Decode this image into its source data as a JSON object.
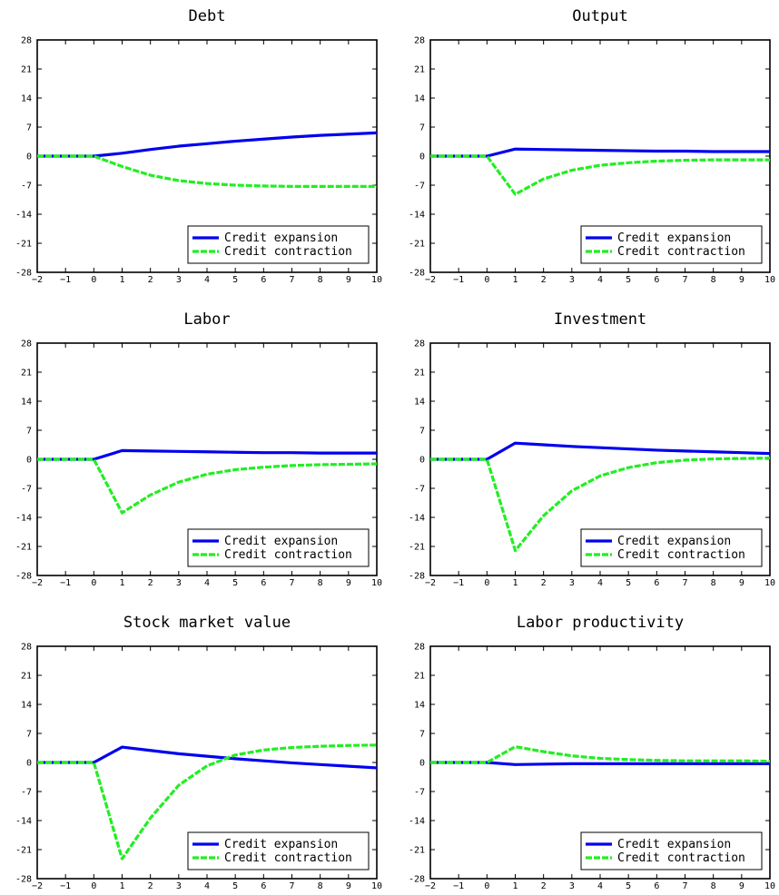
{
  "chart_data": [
    {
      "type": "line",
      "title": "Debt",
      "x": [
        -2,
        -1,
        0,
        1,
        2,
        3,
        4,
        5,
        6,
        7,
        8,
        9,
        10
      ],
      "xlim": [
        -2,
        10
      ],
      "ylim": [
        -28,
        28
      ],
      "xticks": [
        "−2",
        "−1",
        "0",
        "1",
        "2",
        "3",
        "4",
        "5",
        "6",
        "7",
        "8",
        "9",
        "10"
      ],
      "yticks": [
        "28",
        "21",
        "14",
        "7",
        "0",
        "-7",
        "-14",
        "-21",
        "-28"
      ],
      "legend_position": "bottom-right",
      "grid": false,
      "series": [
        {
          "name": "Credit expansion",
          "color": "#0000ee",
          "style": "solid",
          "values": [
            0,
            0,
            0,
            0.7,
            1.6,
            2.4,
            3.0,
            3.6,
            4.1,
            4.6,
            5.0,
            5.3,
            5.6
          ]
        },
        {
          "name": "Credit contraction",
          "color": "#22ee22",
          "style": "dashed",
          "values": [
            0,
            0,
            0,
            -2.5,
            -4.6,
            -5.9,
            -6.6,
            -7.0,
            -7.2,
            -7.3,
            -7.3,
            -7.3,
            -7.3
          ]
        }
      ]
    },
    {
      "type": "line",
      "title": "Output",
      "x": [
        -2,
        -1,
        0,
        1,
        2,
        3,
        4,
        5,
        6,
        7,
        8,
        9,
        10
      ],
      "xlim": [
        -2,
        10
      ],
      "ylim": [
        -28,
        28
      ],
      "xticks": [
        "−2",
        "−1",
        "0",
        "1",
        "2",
        "3",
        "4",
        "5",
        "6",
        "7",
        "8",
        "9",
        "10"
      ],
      "yticks": [
        "28",
        "21",
        "14",
        "7",
        "0",
        "-7",
        "-14",
        "-21",
        "-28"
      ],
      "legend_position": "bottom-right",
      "grid": false,
      "series": [
        {
          "name": "Credit expansion",
          "color": "#0000ee",
          "style": "solid",
          "values": [
            0,
            0,
            0,
            1.7,
            1.6,
            1.5,
            1.4,
            1.3,
            1.2,
            1.2,
            1.1,
            1.1,
            1.1
          ]
        },
        {
          "name": "Credit contraction",
          "color": "#22ee22",
          "style": "dashed",
          "values": [
            0,
            0,
            0,
            -9.2,
            -5.5,
            -3.4,
            -2.2,
            -1.6,
            -1.2,
            -1.0,
            -0.9,
            -0.9,
            -0.9
          ]
        }
      ]
    },
    {
      "type": "line",
      "title": "Labor",
      "x": [
        -2,
        -1,
        0,
        1,
        2,
        3,
        4,
        5,
        6,
        7,
        8,
        9,
        10
      ],
      "xlim": [
        -2,
        10
      ],
      "ylim": [
        -28,
        28
      ],
      "xticks": [
        "−2",
        "−1",
        "0",
        "1",
        "2",
        "3",
        "4",
        "5",
        "6",
        "7",
        "8",
        "9",
        "10"
      ],
      "yticks": [
        "28",
        "21",
        "14",
        "7",
        "0",
        "-7",
        "-14",
        "-21",
        "-28"
      ],
      "legend_position": "bottom-right",
      "grid": false,
      "series": [
        {
          "name": "Credit expansion",
          "color": "#0000ee",
          "style": "solid",
          "values": [
            0,
            0,
            0,
            2.1,
            2.0,
            1.9,
            1.8,
            1.7,
            1.6,
            1.6,
            1.5,
            1.5,
            1.5
          ]
        },
        {
          "name": "Credit contraction",
          "color": "#22ee22",
          "style": "dashed",
          "values": [
            0,
            0,
            0,
            -12.9,
            -8.6,
            -5.5,
            -3.6,
            -2.5,
            -1.9,
            -1.5,
            -1.3,
            -1.2,
            -1.1
          ]
        }
      ]
    },
    {
      "type": "line",
      "title": "Investment",
      "x": [
        -2,
        -1,
        0,
        1,
        2,
        3,
        4,
        5,
        6,
        7,
        8,
        9,
        10
      ],
      "xlim": [
        -2,
        10
      ],
      "ylim": [
        -28,
        28
      ],
      "xticks": [
        "−2",
        "−1",
        "0",
        "1",
        "2",
        "3",
        "4",
        "5",
        "6",
        "7",
        "8",
        "9",
        "10"
      ],
      "yticks": [
        "28",
        "21",
        "14",
        "7",
        "0",
        "-7",
        "-14",
        "-21",
        "-28"
      ],
      "legend_position": "bottom-right",
      "grid": false,
      "series": [
        {
          "name": "Credit expansion",
          "color": "#0000ee",
          "style": "solid",
          "values": [
            0,
            0,
            0,
            3.9,
            3.5,
            3.1,
            2.8,
            2.5,
            2.2,
            2.0,
            1.8,
            1.6,
            1.4
          ]
        },
        {
          "name": "Credit contraction",
          "color": "#22ee22",
          "style": "dashed",
          "values": [
            0,
            0,
            0,
            -22.0,
            -13.6,
            -7.6,
            -4.0,
            -2.0,
            -0.8,
            -0.2,
            0.1,
            0.2,
            0.3
          ]
        }
      ]
    },
    {
      "type": "line",
      "title": "Stock market value",
      "x": [
        -2,
        -1,
        0,
        1,
        2,
        3,
        4,
        5,
        6,
        7,
        8,
        9,
        10
      ],
      "xlim": [
        -2,
        10
      ],
      "ylim": [
        -28,
        28
      ],
      "xticks": [
        "−2",
        "−1",
        "0",
        "1",
        "2",
        "3",
        "4",
        "5",
        "6",
        "7",
        "8",
        "9",
        "10"
      ],
      "yticks": [
        "28",
        "21",
        "14",
        "7",
        "0",
        "-7",
        "-14",
        "-21",
        "-28"
      ],
      "legend_position": "bottom-right",
      "grid": false,
      "series": [
        {
          "name": "Credit expansion",
          "color": "#0000ee",
          "style": "solid",
          "values": [
            0,
            0,
            0,
            3.7,
            2.9,
            2.1,
            1.5,
            0.9,
            0.4,
            -0.1,
            -0.5,
            -0.9,
            -1.3
          ]
        },
        {
          "name": "Credit contraction",
          "color": "#22ee22",
          "style": "dashed",
          "values": [
            0,
            0,
            0,
            -23.2,
            -13.4,
            -5.5,
            -0.8,
            1.8,
            3.0,
            3.6,
            3.9,
            4.1,
            4.2
          ]
        }
      ]
    },
    {
      "type": "line",
      "title": "Labor productivity",
      "x": [
        -2,
        -1,
        0,
        1,
        2,
        3,
        4,
        5,
        6,
        7,
        8,
        9,
        10
      ],
      "xlim": [
        -2,
        10
      ],
      "ylim": [
        -28,
        28
      ],
      "xticks": [
        "−2",
        "−1",
        "0",
        "1",
        "2",
        "3",
        "4",
        "5",
        "6",
        "7",
        "8",
        "9",
        "10"
      ],
      "yticks": [
        "28",
        "21",
        "14",
        "7",
        "0",
        "-7",
        "-14",
        "-21",
        "-28"
      ],
      "legend_position": "bottom-right",
      "grid": false,
      "series": [
        {
          "name": "Credit expansion",
          "color": "#0000ee",
          "style": "solid",
          "values": [
            0,
            0,
            0,
            -0.5,
            -0.4,
            -0.3,
            -0.3,
            -0.3,
            -0.3,
            -0.3,
            -0.3,
            -0.3,
            -0.3
          ]
        },
        {
          "name": "Credit contraction",
          "color": "#22ee22",
          "style": "dashed",
          "values": [
            0,
            0,
            0,
            3.8,
            2.6,
            1.6,
            1.0,
            0.7,
            0.5,
            0.4,
            0.4,
            0.4,
            0.3
          ]
        }
      ]
    }
  ]
}
